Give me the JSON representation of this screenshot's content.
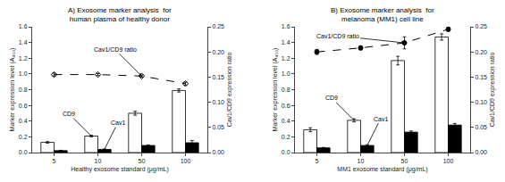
{
  "chart_data": [
    {
      "type": "bar",
      "title": "A) Exosome marker analysis  for\nhuman plasma of healthy donor",
      "x_label": "Healthy exosome standard (μg/mL)",
      "y_label": "Marker expression level (A₄₅₀)",
      "y2_label": "Cav1/CD9 expression ratio",
      "categories": [
        "5",
        "10",
        "50",
        "100"
      ],
      "series": [
        {
          "name": "CD9",
          "type": "bar",
          "color": "white",
          "values": [
            0.13,
            0.21,
            0.5,
            0.79
          ],
          "errors": [
            0.01,
            0.01,
            0.025,
            0.02
          ]
        },
        {
          "name": "Cav1",
          "type": "bar",
          "color": "black",
          "values": [
            0.025,
            0.04,
            0.09,
            0.125
          ],
          "errors": [
            0.004,
            0.005,
            0.008,
            0.028
          ]
        },
        {
          "name": "Cav1/CD9 ratio",
          "type": "line",
          "axis": "y2",
          "color": "black",
          "marker": "diamond-open",
          "line_style": "dashed",
          "values": [
            0.155,
            0.155,
            0.152,
            0.137
          ],
          "errors": [
            0.003,
            0.002,
            0.002,
            0.003
          ]
        }
      ],
      "ylim": [
        0,
        1.6
      ],
      "yticks": [
        {
          "value": 0.0,
          "label": "0.0"
        },
        0.2,
        0.4,
        0.6,
        0.8,
        {
          "value": 1.0,
          "label": "1.0"
        },
        1.2,
        1.4,
        1.6
      ],
      "y2lim": [
        0,
        0.25
      ],
      "y2ticks": [
        {
          "value": 0.0,
          "label": "0.00"
        },
        0.05,
        {
          "value": 0.1,
          "label": "0.10"
        },
        0.15,
        {
          "value": 0.2,
          "label": "0.20"
        },
        0.25
      ],
      "grid": false,
      "legend": false
    },
    {
      "type": "bar",
      "title": "B) Exosome marker analysis  for\nmelanoma (MM1) cell line",
      "x_label": "MM1 exosome standard (μg/mL)",
      "y_label": "Marker expression level (A₄₅₀)",
      "y2_label": "Cav1/CD9 expression ratio",
      "categories": [
        "5",
        "10",
        "50",
        "100"
      ],
      "series": [
        {
          "name": "CD9",
          "type": "bar",
          "color": "white",
          "values": [
            0.29,
            0.41,
            1.17,
            1.47
          ],
          "errors": [
            0.025,
            0.02,
            0.055,
            0.04
          ]
        },
        {
          "name": "Cav1",
          "type": "bar",
          "color": "black",
          "values": [
            0.06,
            0.09,
            0.26,
            0.35
          ],
          "errors": [
            0.005,
            0.01,
            0.015,
            0.02
          ]
        },
        {
          "name": "Cav1/CD9 ratio",
          "type": "line",
          "axis": "y2",
          "color": "black",
          "marker": "circle",
          "line_style": "dashed",
          "values": [
            0.2,
            0.208,
            0.218,
            0.245
          ],
          "errors": [
            0.005,
            0.004,
            0.012,
            0.004
          ]
        }
      ],
      "ylim": [
        0,
        1.6
      ],
      "yticks": [
        {
          "value": 0.0,
          "label": "0.0"
        },
        0.2,
        0.4,
        0.6,
        0.8,
        {
          "value": 1.0,
          "label": "1.0"
        },
        1.2,
        1.4,
        1.6
      ],
      "y2lim": [
        0,
        0.25
      ],
      "y2ticks": [
        {
          "value": 0.0,
          "label": "0.00"
        },
        0.05,
        {
          "value": 0.1,
          "label": "0.10"
        },
        0.15,
        {
          "value": 0.2,
          "label": "0.20"
        },
        0.25
      ],
      "grid": false,
      "legend": false
    }
  ]
}
